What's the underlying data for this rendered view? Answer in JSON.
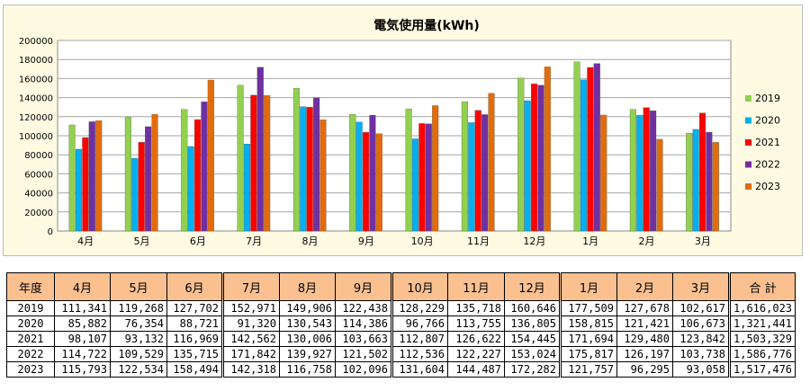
{
  "chart_data": {
    "type": "bar",
    "title": "電気使用量(kWh)",
    "categories": [
      "4月",
      "5月",
      "6月",
      "7月",
      "8月",
      "9月",
      "10月",
      "11月",
      "12月",
      "1月",
      "2月",
      "3月"
    ],
    "ylim": [
      0,
      200000
    ],
    "yticks": [
      "0",
      "20000",
      "40000",
      "60000",
      "80000",
      "100000",
      "120000",
      "140000",
      "160000",
      "180000",
      "200000"
    ],
    "grid": true,
    "legend_position": "right",
    "series": [
      {
        "name": "2019",
        "color": "#92d050",
        "values": [
          111341,
          119268,
          127702,
          152971,
          149906,
          122438,
          128229,
          135718,
          160646,
          177509,
          127678,
          102617
        ]
      },
      {
        "name": "2020",
        "color": "#00b0f0",
        "values": [
          85882,
          76354,
          88721,
          91320,
          130543,
          114386,
          96766,
          113755,
          136805,
          158815,
          121421,
          106673
        ]
      },
      {
        "name": "2021",
        "color": "#ff0000",
        "values": [
          98107,
          93132,
          116969,
          142562,
          130006,
          103663,
          112807,
          126622,
          154445,
          171694,
          129480,
          123842
        ]
      },
      {
        "name": "2022",
        "color": "#7030a0",
        "values": [
          114722,
          109529,
          135715,
          171842,
          139927,
          121502,
          112536,
          122227,
          153024,
          175817,
          126197,
          103738
        ]
      },
      {
        "name": "2023",
        "color": "#e36c0a",
        "values": [
          115793,
          122534,
          158494,
          142318,
          116758,
          102096,
          131604,
          144487,
          172282,
          121757,
          96295,
          93058
        ]
      }
    ]
  },
  "table": {
    "headers": [
      "年度",
      "4月",
      "5月",
      "6月",
      "7月",
      "8月",
      "9月",
      "10月",
      "11月",
      "12月",
      "1月",
      "2月",
      "3月",
      "合 計"
    ],
    "rows": [
      [
        "2019",
        "111,341",
        "119,268",
        "127,702",
        "152,971",
        "149,906",
        "122,438",
        "128,229",
        "135,718",
        "160,646",
        "177,509",
        "127,678",
        "102,617",
        "1,616,023"
      ],
      [
        "2020",
        "85,882",
        "76,354",
        "88,721",
        "91,320",
        "130,543",
        "114,386",
        "96,766",
        "113,755",
        "136,805",
        "158,815",
        "121,421",
        "106,673",
        "1,321,441"
      ],
      [
        "2021",
        "98,107",
        "93,132",
        "116,969",
        "142,562",
        "130,006",
        "103,663",
        "112,807",
        "126,622",
        "154,445",
        "171,694",
        "129,480",
        "123,842",
        "1,503,329"
      ],
      [
        "2022",
        "114,722",
        "109,529",
        "135,715",
        "171,842",
        "139,927",
        "121,502",
        "112,536",
        "122,227",
        "153,024",
        "175,817",
        "126,197",
        "103,738",
        "1,586,776"
      ],
      [
        "2023",
        "115,793",
        "122,534",
        "158,494",
        "142,318",
        "116,758",
        "102,096",
        "131,604",
        "144,487",
        "172,282",
        "121,757",
        "96,295",
        "93,058",
        "1,517,476"
      ]
    ]
  }
}
